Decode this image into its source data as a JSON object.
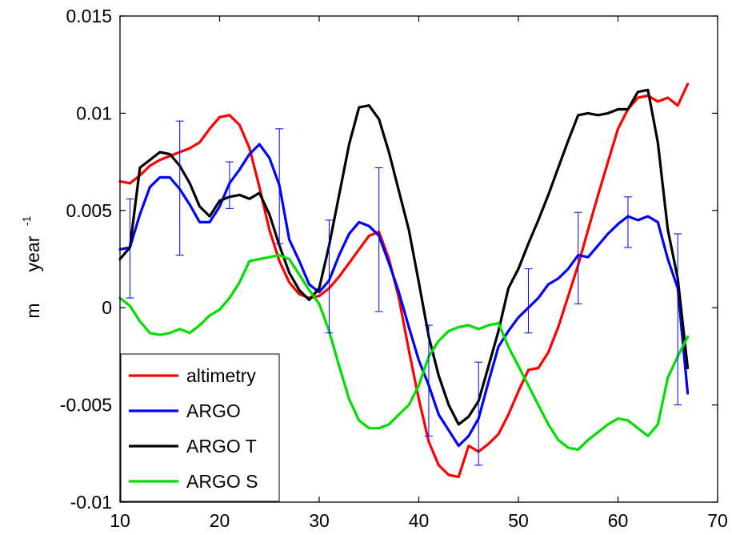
{
  "chart_data": {
    "type": "line",
    "xlim": [
      10,
      70
    ],
    "ylim": [
      -0.01,
      0.015
    ],
    "xticks": [
      "10",
      "20",
      "30",
      "40",
      "50",
      "60",
      "70"
    ],
    "yticks": [
      "-0.01",
      "-0.005",
      "0",
      "0.005",
      "0.01",
      "0.015"
    ],
    "xlabel": "",
    "ylabel": {
      "unit": "m",
      "word": "year",
      "exponent": "-1"
    },
    "grid": false,
    "legend_position": "bottom-left",
    "series": [
      {
        "name": "altimetry",
        "color": "#ff0000",
        "x": [
          10,
          11,
          12,
          13,
          14,
          15,
          16,
          17,
          18,
          19,
          20,
          21,
          22,
          23,
          24,
          25,
          26,
          27,
          28,
          29,
          30,
          31,
          32,
          33,
          34,
          35,
          36,
          37,
          38,
          39,
          40,
          41,
          42,
          43,
          44,
          45,
          46,
          47,
          48,
          49,
          50,
          51,
          52,
          53,
          54,
          55,
          56,
          57,
          58,
          59,
          60,
          61,
          62,
          63,
          64,
          65,
          66,
          67
        ],
        "y": [
          0.0065,
          0.0064,
          0.0068,
          0.0073,
          0.0076,
          0.0078,
          0.008,
          0.0082,
          0.0085,
          0.0092,
          0.0098,
          0.0099,
          0.0094,
          0.0082,
          0.0062,
          0.004,
          0.0024,
          0.0013,
          0.0007,
          0.0005,
          0.0006,
          0.001,
          0.0016,
          0.0023,
          0.003,
          0.0037,
          0.0039,
          0.0025,
          0.0005,
          -0.0022,
          -0.0047,
          -0.0069,
          -0.0081,
          -0.0086,
          -0.0087,
          -0.0071,
          -0.0074,
          -0.007,
          -0.0065,
          -0.0055,
          -0.0043,
          -0.0032,
          -0.0031,
          -0.0023,
          -0.001,
          0.0006,
          0.0022,
          0.004,
          0.0058,
          0.0075,
          0.0092,
          0.0102,
          0.0108,
          0.0109,
          0.0106,
          0.0108,
          0.0104,
          0.0115
        ]
      },
      {
        "name": "ARGO",
        "color": "#0000ff",
        "x": [
          10,
          11,
          12,
          13,
          14,
          15,
          16,
          17,
          18,
          19,
          20,
          21,
          22,
          23,
          24,
          25,
          26,
          27,
          28,
          29,
          30,
          31,
          32,
          33,
          34,
          35,
          36,
          37,
          38,
          39,
          40,
          41,
          42,
          43,
          44,
          45,
          46,
          47,
          48,
          49,
          50,
          51,
          52,
          53,
          54,
          55,
          56,
          57,
          58,
          59,
          60,
          61,
          62,
          63,
          64,
          65,
          66,
          67
        ],
        "y": [
          0.003,
          0.0031,
          0.0048,
          0.0062,
          0.0067,
          0.0067,
          0.0061,
          0.0053,
          0.0044,
          0.0044,
          0.0052,
          0.0064,
          0.0071,
          0.0079,
          0.0084,
          0.0077,
          0.0063,
          0.0035,
          0.0024,
          0.0012,
          0.0008,
          0.0014,
          0.0027,
          0.0038,
          0.0044,
          0.0042,
          0.0037,
          0.0023,
          0.0008,
          -0.001,
          -0.0027,
          -0.004,
          -0.0055,
          -0.0063,
          -0.0071,
          -0.0066,
          -0.0057,
          -0.0038,
          -0.002,
          -0.0012,
          -0.0005,
          0.0,
          0.0005,
          0.0012,
          0.0015,
          0.002,
          0.0027,
          0.0026,
          0.0032,
          0.0038,
          0.0043,
          0.0047,
          0.0045,
          0.0047,
          0.0044,
          0.0025,
          0.001,
          -0.0044
        ]
      },
      {
        "name": "ARGO T",
        "color": "#000000",
        "x": [
          10,
          11,
          12,
          13,
          14,
          15,
          16,
          17,
          18,
          19,
          20,
          21,
          22,
          23,
          24,
          25,
          26,
          27,
          28,
          29,
          30,
          31,
          32,
          33,
          34,
          35,
          36,
          37,
          38,
          39,
          40,
          41,
          42,
          43,
          44,
          45,
          46,
          47,
          48,
          49,
          50,
          51,
          52,
          53,
          54,
          55,
          56,
          57,
          58,
          59,
          60,
          61,
          62,
          63,
          64,
          65,
          66,
          67
        ],
        "y": [
          0.0025,
          0.0031,
          0.0072,
          0.0076,
          0.008,
          0.0079,
          0.0073,
          0.0064,
          0.0052,
          0.0047,
          0.0055,
          0.0057,
          0.0058,
          0.0056,
          0.0059,
          0.0048,
          0.0032,
          0.0018,
          0.0009,
          0.0004,
          0.001,
          0.0032,
          0.0058,
          0.0084,
          0.0103,
          0.0104,
          0.0097,
          0.008,
          0.006,
          0.004,
          0.0013,
          -0.0015,
          -0.0035,
          -0.005,
          -0.006,
          -0.0056,
          -0.0048,
          -0.003,
          -0.0012,
          0.001,
          0.002,
          0.0033,
          0.0045,
          0.0058,
          0.0072,
          0.0086,
          0.0099,
          0.01,
          0.0099,
          0.01,
          0.0102,
          0.0102,
          0.0111,
          0.0112,
          0.0085,
          0.004,
          0.0015,
          -0.0031
        ]
      },
      {
        "name": "ARGO S",
        "color": "#00dd00",
        "x": [
          10,
          11,
          12,
          13,
          14,
          15,
          16,
          17,
          18,
          19,
          20,
          21,
          22,
          23,
          24,
          25,
          26,
          27,
          28,
          29,
          30,
          31,
          32,
          33,
          34,
          35,
          36,
          37,
          38,
          39,
          40,
          41,
          42,
          43,
          44,
          45,
          46,
          47,
          48,
          49,
          50,
          51,
          52,
          53,
          54,
          55,
          56,
          57,
          58,
          59,
          60,
          61,
          62,
          63,
          64,
          65,
          66,
          67
        ],
        "y": [
          0.0005,
          0.0001,
          -0.0007,
          -0.0013,
          -0.0014,
          -0.0013,
          -0.0011,
          -0.0013,
          -0.0009,
          -0.0004,
          -0.0001,
          0.0005,
          0.0013,
          0.0024,
          0.0025,
          0.0026,
          0.0027,
          0.0025,
          0.0017,
          0.0009,
          0.0002,
          -0.0012,
          -0.003,
          -0.0047,
          -0.0058,
          -0.0062,
          -0.0062,
          -0.006,
          -0.0055,
          -0.005,
          -0.004,
          -0.0025,
          -0.0017,
          -0.0012,
          -0.001,
          -0.0009,
          -0.0011,
          -0.0009,
          -0.0008,
          -0.002,
          -0.003,
          -0.004,
          -0.005,
          -0.006,
          -0.0068,
          -0.0072,
          -0.0073,
          -0.0068,
          -0.0064,
          -0.006,
          -0.0057,
          -0.0058,
          -0.0062,
          -0.0066,
          -0.006,
          -0.0036,
          -0.0025,
          -0.0015
        ]
      }
    ],
    "error_bars": {
      "series": "ARGO",
      "color": "#0000ff",
      "points": [
        {
          "x": 11,
          "low": 0.0005,
          "high": 0.0056
        },
        {
          "x": 16,
          "low": 0.0027,
          "high": 0.0096
        },
        {
          "x": 21,
          "low": 0.0051,
          "high": 0.0075
        },
        {
          "x": 26,
          "low": 0.0033,
          "high": 0.0092
        },
        {
          "x": 31,
          "low": -0.0013,
          "high": 0.0045
        },
        {
          "x": 36,
          "low": -0.0002,
          "high": 0.0072
        },
        {
          "x": 41,
          "low": -0.0066,
          "high": -0.0009
        },
        {
          "x": 46,
          "low": -0.0081,
          "high": -0.0028
        },
        {
          "x": 51,
          "low": -0.0013,
          "high": 0.002
        },
        {
          "x": 56,
          "low": 0.0002,
          "high": 0.0049
        },
        {
          "x": 61,
          "low": 0.0031,
          "high": 0.0057
        },
        {
          "x": 66,
          "low": -0.005,
          "high": 0.0038
        }
      ]
    }
  }
}
